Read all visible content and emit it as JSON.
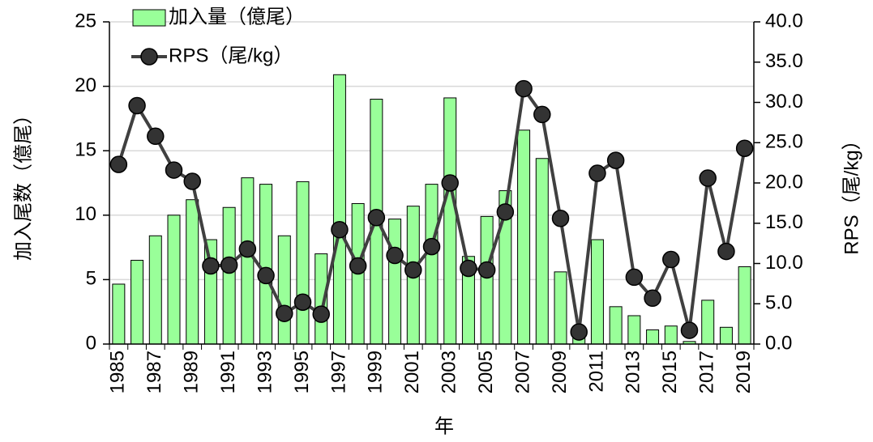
{
  "chart_data": {
    "type": "bar_line",
    "x_label": "年",
    "y_label": "加入尾数（億尾）",
    "y2_label": "RPS（尾/kg）",
    "categories": [
      "1985",
      null,
      "1987",
      null,
      "1989",
      null,
      "1991",
      null,
      "1993",
      null,
      "1995",
      null,
      "1997",
      null,
      "1999",
      null,
      "2001",
      null,
      "2003",
      null,
      "2005",
      null,
      "2007",
      null,
      "2009",
      null,
      "2011",
      null,
      "2013",
      null,
      "2015",
      null,
      "2017",
      null,
      "2019"
    ],
    "series": [
      {
        "name": "加入量（億尾）",
        "type": "bar",
        "color": "#99ff99",
        "values": [
          4.65,
          6.5,
          8.4,
          10.0,
          11.2,
          8.1,
          10.6,
          12.9,
          12.4,
          8.4,
          12.6,
          7.0,
          20.9,
          10.9,
          19.0,
          9.7,
          10.7,
          12.4,
          19.1,
          6.8,
          9.9,
          11.9,
          16.6,
          14.4,
          5.6,
          0.6,
          8.1,
          2.9,
          2.2,
          1.1,
          1.4,
          0.2,
          3.4,
          1.3,
          6.0
        ]
      },
      {
        "name": "RPS（尾/kg）",
        "type": "line",
        "axis": "y2",
        "color": "#404040",
        "values": [
          22.3,
          29.6,
          25.8,
          21.6,
          20.2,
          9.7,
          9.8,
          11.8,
          8.5,
          3.8,
          5.2,
          3.7,
          14.2,
          9.7,
          15.7,
          11.0,
          9.2,
          12.1,
          20.0,
          9.4,
          9.2,
          16.4,
          31.7,
          28.5,
          15.6,
          1.5,
          21.2,
          22.8,
          8.3,
          5.7,
          10.5,
          1.7,
          20.6,
          11.5,
          24.3
        ]
      }
    ],
    "ylim": [
      0,
      25
    ],
    "yticks": [
      0,
      5,
      10,
      15,
      20,
      25
    ],
    "y2lim": [
      0,
      40
    ],
    "y2ticks": [
      {
        "value": 0,
        "label": "0.0"
      },
      {
        "value": 5,
        "label": "5.0"
      },
      {
        "value": 10,
        "label": "10.0"
      },
      {
        "value": 15,
        "label": "15.0"
      },
      {
        "value": 20,
        "label": "20.0"
      },
      {
        "value": 25,
        "label": "25.0"
      },
      {
        "value": 30,
        "label": "30.0"
      },
      {
        "value": 35,
        "label": "35.0"
      },
      {
        "value": 40,
        "label": "40.0"
      }
    ],
    "grid": true,
    "legend": "upper left"
  }
}
